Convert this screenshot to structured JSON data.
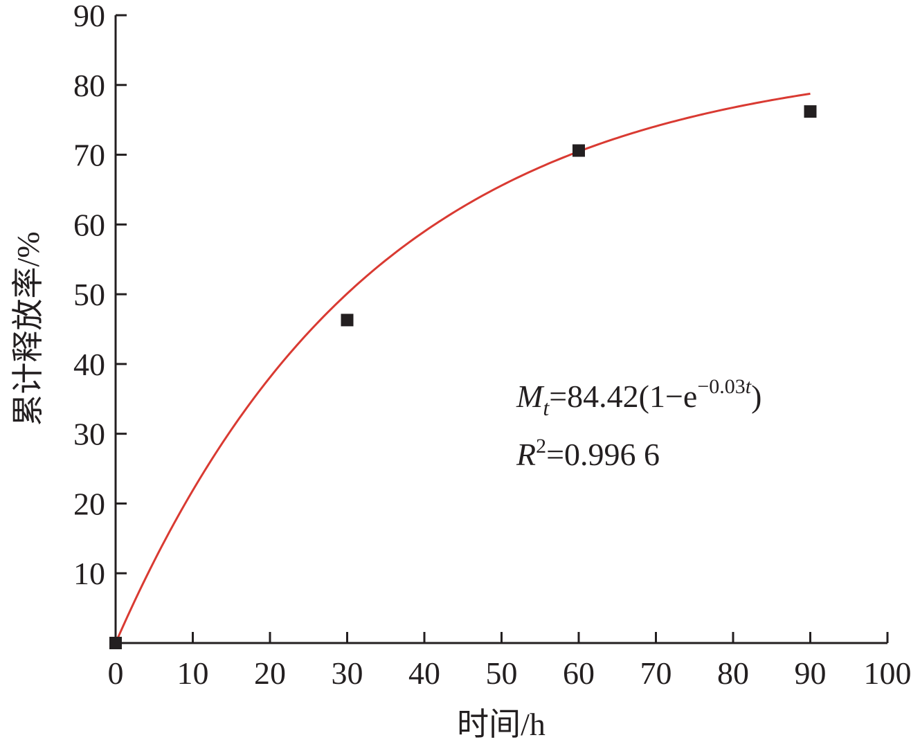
{
  "chart_data": {
    "type": "scatter",
    "xlabel": "时间/h",
    "ylabel": "累计释放率/%",
    "xlim": [
      0,
      100
    ],
    "ylim": [
      0,
      90
    ],
    "x_ticks": [
      "0",
      "10",
      "20",
      "30",
      "40",
      "50",
      "60",
      "70",
      "80",
      "90",
      "100"
    ],
    "y_ticks": [
      "10",
      "20",
      "30",
      "40",
      "50",
      "60",
      "70",
      "80",
      "90"
    ],
    "grid": false,
    "series": [
      {
        "kind": "points",
        "marker": "square",
        "color": "#231f20",
        "points": [
          {
            "x": 0,
            "y": 0
          },
          {
            "x": 30,
            "y": 46.3
          },
          {
            "x": 60,
            "y": 70.6
          },
          {
            "x": 90,
            "y": 76.2
          }
        ]
      },
      {
        "kind": "fit-curve",
        "color": "#d93a32",
        "model": "exponential-saturation",
        "a": 84.42,
        "k": 0.03,
        "x_range": [
          0,
          90
        ]
      }
    ],
    "annotations": {
      "equation": {
        "M": "M",
        "t_sub": "t",
        "body": "=84.42(1−e",
        "exp_prefix": "−0.03",
        "exp_t": "t",
        "close": ")"
      },
      "r2": {
        "R": "R",
        "sup": "2",
        "value": "=0.996 6"
      }
    }
  }
}
